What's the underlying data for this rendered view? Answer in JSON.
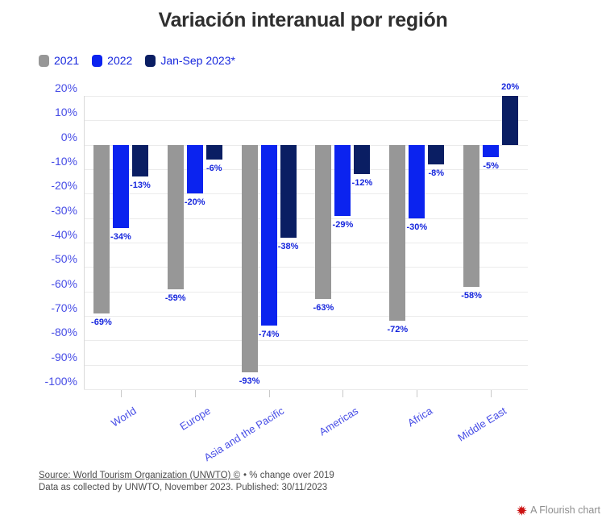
{
  "chart_data": {
    "type": "bar",
    "title": "Variación interanual por región",
    "categories": [
      "World",
      "Europe",
      "Asia and the Pacific",
      "Americas",
      "Africa",
      "Middle East"
    ],
    "series": [
      {
        "name": "2021",
        "color": "#979797",
        "values": [
          -69,
          -59,
          -93,
          -63,
          -72,
          -58
        ]
      },
      {
        "name": "2022",
        "color": "#0b23ef",
        "values": [
          -34,
          -20,
          -74,
          -29,
          -30,
          -5
        ]
      },
      {
        "name": "Jan-Sep 2023*",
        "color": "#0a1e63",
        "values": [
          -13,
          -6,
          -38,
          -12,
          -8,
          20
        ]
      }
    ],
    "ylim": [
      -100,
      20
    ],
    "y_tick_step": 10,
    "y_tick_suffix": "%",
    "data_label_suffix": "%",
    "grid": true,
    "legend_position": "top-left",
    "xlabel": "",
    "ylabel": ""
  },
  "footer": {
    "source_link": "Source: World Tourism Organization (UNWTO) ©",
    "source_suffix": "• % change over 2019",
    "note": "Data as collected by UNWTO, November 2023. Published: 30/11/2023"
  },
  "attribution": {
    "label": "A Flourish chart",
    "icon": "flourish-starburst-icon",
    "icon_color": "#cc1212"
  },
  "colors": {
    "title_text": "#2f2f2f",
    "axis_label_text": "#474de6",
    "data_label_text": "#1626dd",
    "legend_text": "#1626dd",
    "gridline": "#ebebeb",
    "footer_text": "#4d4d4d",
    "attribution_text": "#8e8e8e"
  }
}
